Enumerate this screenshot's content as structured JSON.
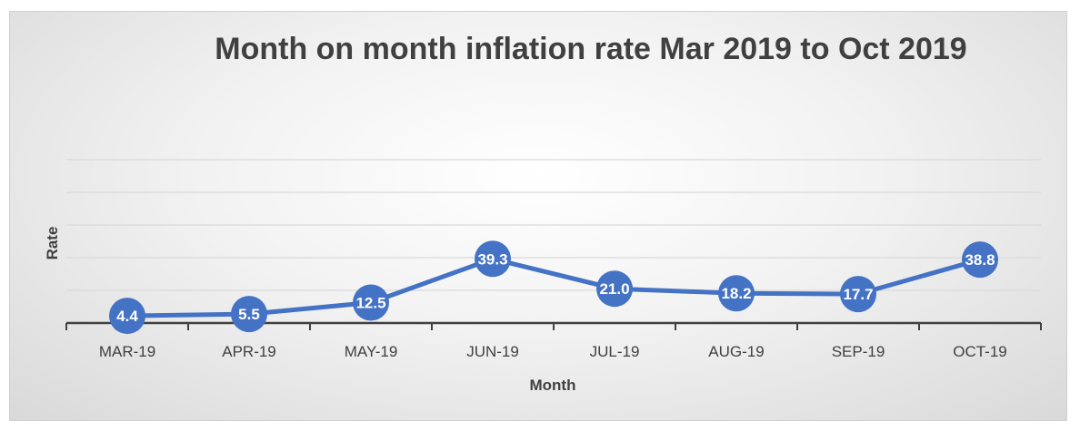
{
  "chart_data": {
    "type": "line",
    "title": "Month on month inflation rate Mar 2019 to Oct 2019",
    "xlabel": "Month",
    "ylabel": "Rate",
    "categories": [
      "MAR-19",
      "APR-19",
      "MAY-19",
      "JUN-19",
      "JUL-19",
      "AUG-19",
      "SEP-19",
      "OCT-19"
    ],
    "series": [
      {
        "values": [
          4.4,
          5.5,
          12.5,
          39.3,
          21.0,
          18.2,
          17.7,
          38.8
        ]
      }
    ],
    "data_labels": [
      "4.4",
      "5.5",
      "12.5",
      "39.3",
      "21.0",
      "18.2",
      "17.7",
      "38.8"
    ],
    "ylim": [
      0,
      100
    ],
    "grid": true,
    "legend": "none",
    "colors": {
      "series": "#4472c4",
      "grid": "#d9d9d9",
      "axis": "#404040"
    }
  }
}
